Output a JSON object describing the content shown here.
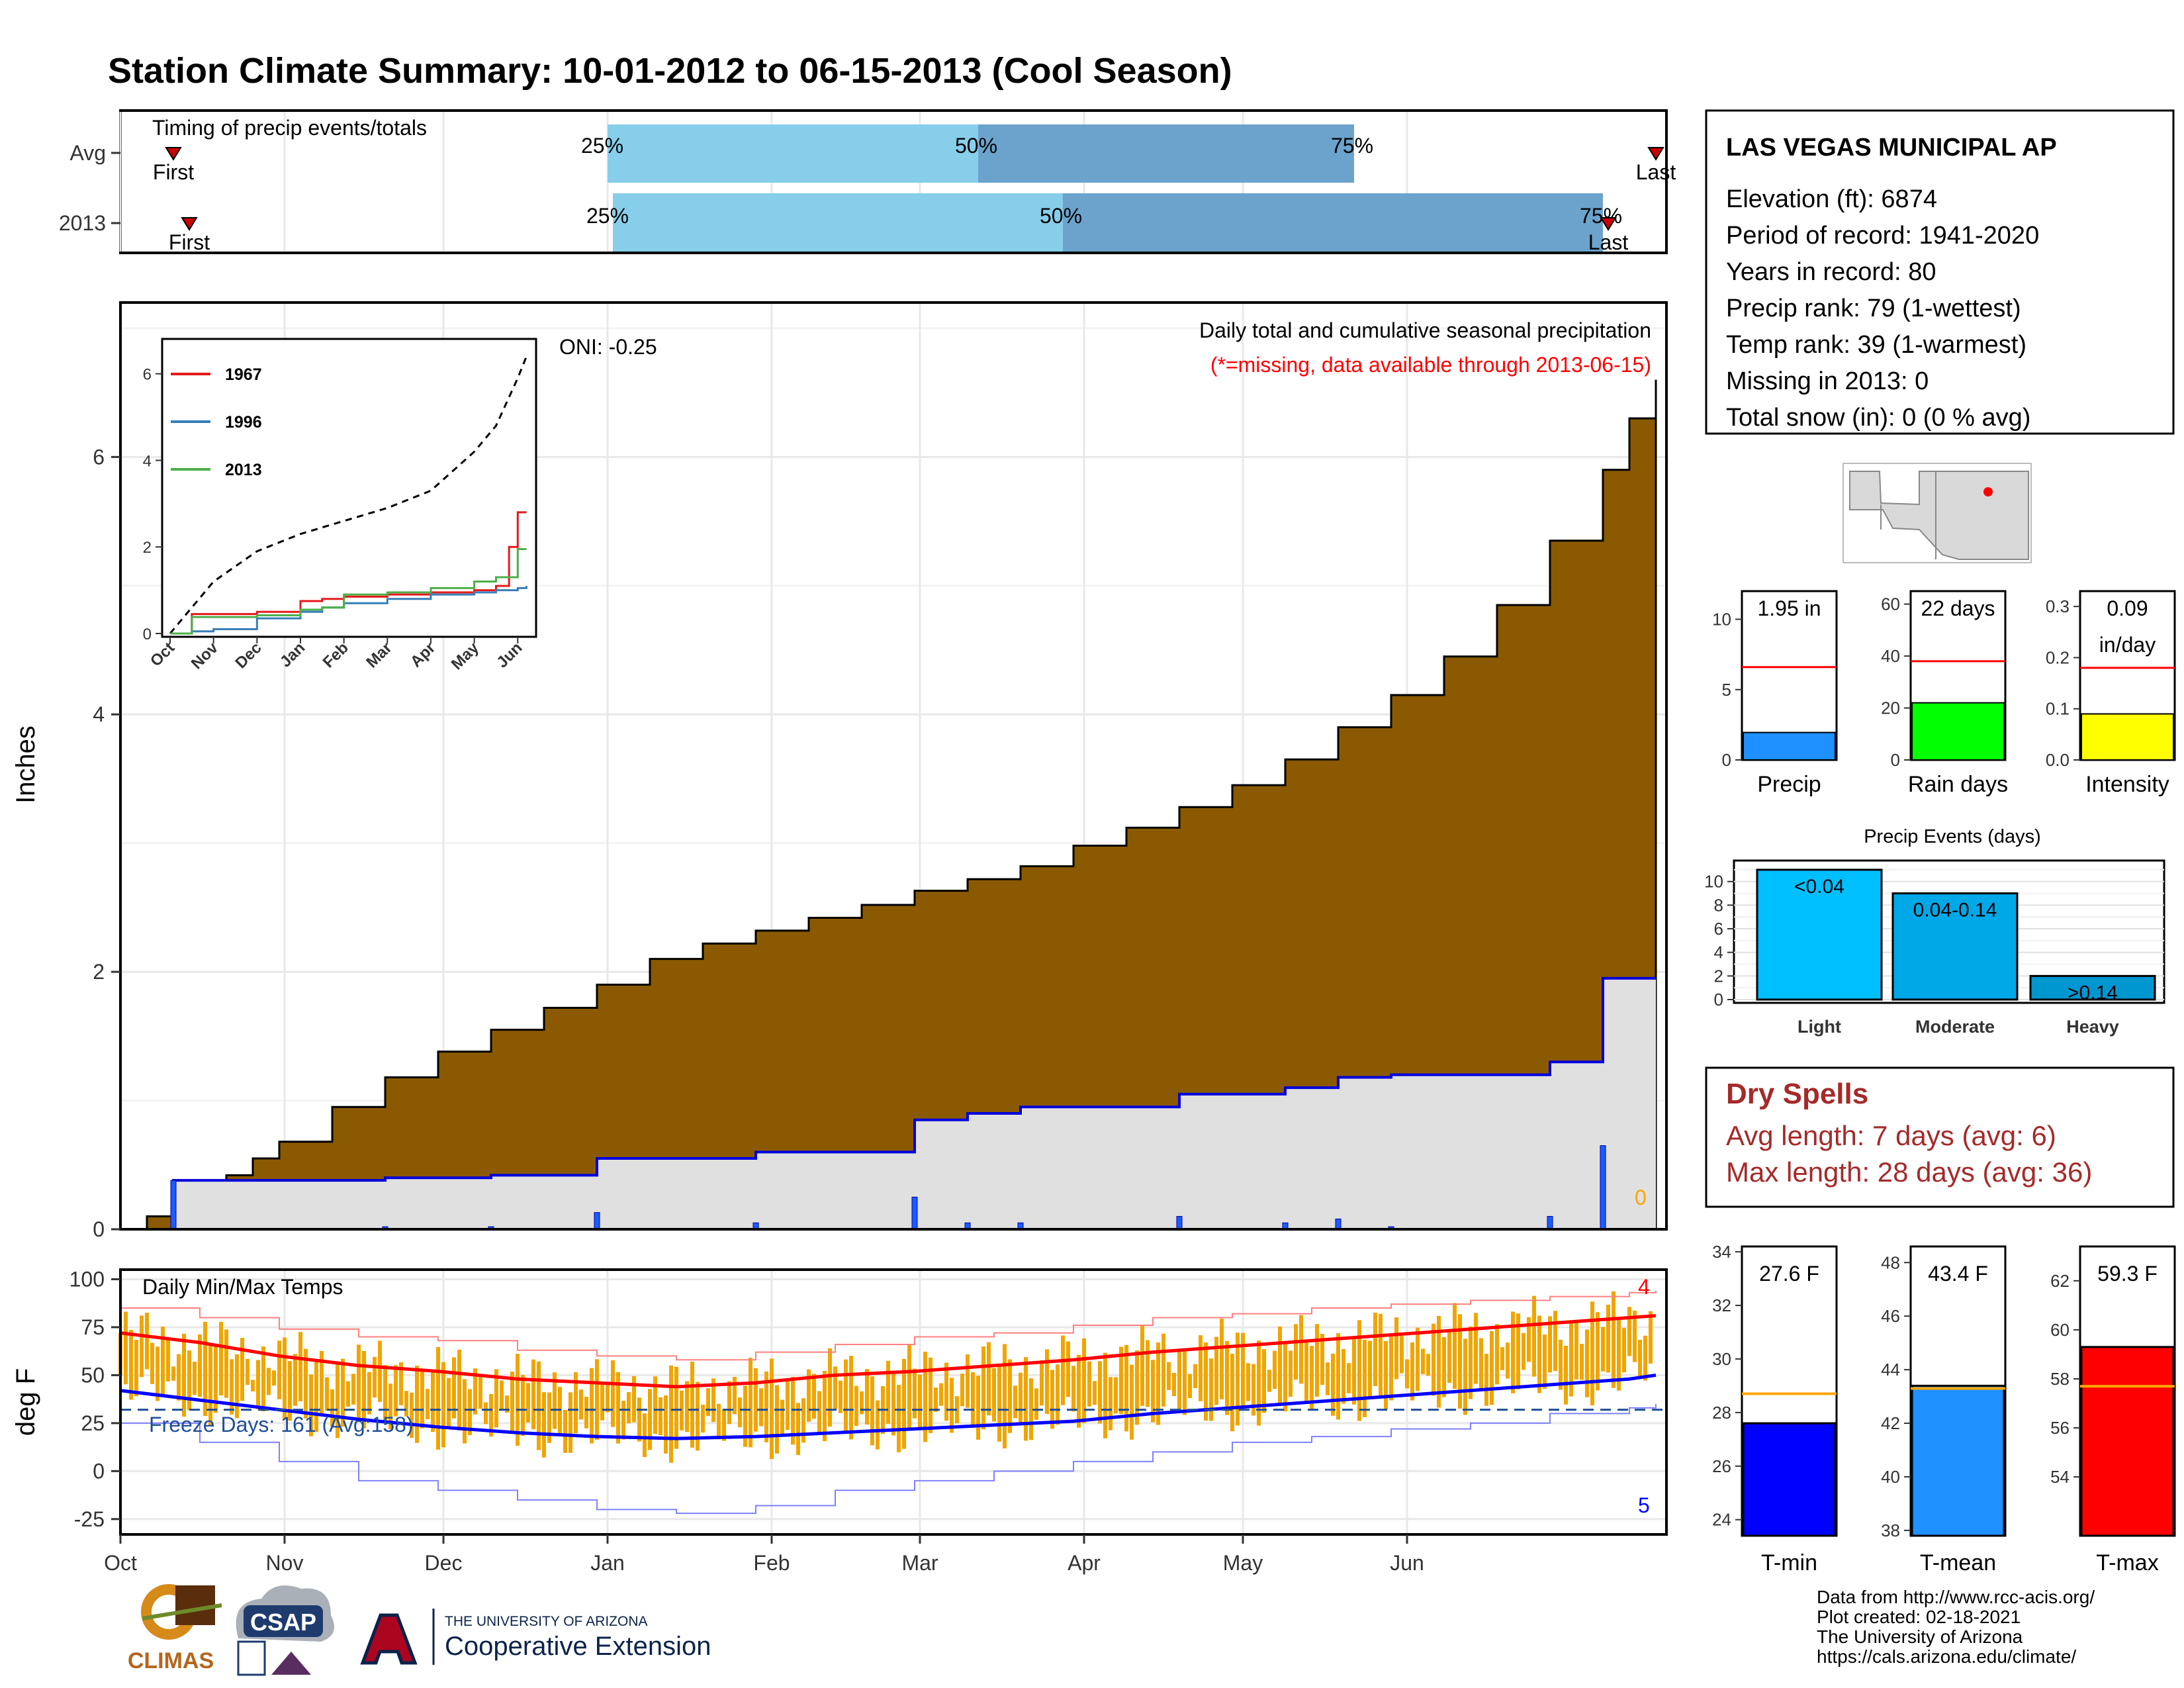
{
  "title": "Station Climate Summary: 10-01-2012 to 06-15-2013 (Cool Season)",
  "months": [
    "Oct",
    "Nov",
    "Dec",
    "Jan",
    "Feb",
    "Mar",
    "Apr",
    "May",
    "Jun"
  ],
  "colors": {
    "title": "#253c87",
    "cum_fill": "#8b5a00",
    "avg_fill": "#e0e0e0",
    "daily_bar": "#1a5cff",
    "line_blue": "#0000dd",
    "light_blue": "#87ceeb",
    "mid_blue": "#6ba3cc",
    "temp_bar": "#f0a500",
    "tmax_line": "#ff0000",
    "tmin_line": "#0000ff",
    "dry_spell": "#a52a2a"
  },
  "timing": {
    "label": "Timing of precip events/totals",
    "rows": [
      {
        "name": "Avg",
        "first": "First",
        "last": "Last",
        "p25": "25%",
        "p50": "50%",
        "p75": "75%"
      },
      {
        "name": "2013",
        "first": "First",
        "last": "Last",
        "p25": "25%",
        "p50": "50%",
        "p75": "75%"
      }
    ]
  },
  "precip_panel": {
    "ylabel": "Inches",
    "yticks": [
      "0",
      "2",
      "4",
      "6"
    ],
    "note1": "Daily total and cumulative seasonal precipitation",
    "note2": "(*=missing, data available through 2013-06-15)",
    "oni": "ONI: -0.25",
    "count_label": "0"
  },
  "inset": {
    "yticks": [
      "0",
      "2",
      "4",
      "6"
    ],
    "months": [
      "Oct",
      "Nov",
      "Dec",
      "Jan",
      "Feb",
      "Mar",
      "Apr",
      "May",
      "Jun"
    ],
    "legend": [
      {
        "name": "1967",
        "color": "#e41a1c"
      },
      {
        "name": "1996",
        "color": "#377eb8"
      },
      {
        "name": "2013",
        "color": "#4daf4a"
      }
    ]
  },
  "temp_panel": {
    "ylabel": "deg F",
    "yticks": [
      "100",
      "75",
      "50",
      "25",
      "0",
      "-25"
    ],
    "label": "Daily Min/Max Temps",
    "freeze": "Freeze Days: 161 (Avg:158)",
    "count_top": "4",
    "count_bottom": "5"
  },
  "station": {
    "name": "LAS VEGAS MUNICIPAL AP",
    "lines": [
      "Elevation (ft): 6874",
      "Period of record: 1941-2020",
      "Years in record: 80",
      "Precip rank: 79 (1-wettest)",
      "Temp rank: 39 (1-warmest)",
      "Missing in 2013: 0",
      "Total snow (in): 0 (0 % avg)"
    ]
  },
  "mini_bars": [
    {
      "label": "Precip",
      "value_text": "1.95 in",
      "value_text2": "",
      "yticks": [
        "0",
        "5",
        "10"
      ],
      "color": "#1e90ff"
    },
    {
      "label": "Rain days",
      "value_text": "22 days",
      "value_text2": "",
      "yticks": [
        "0",
        "20",
        "40",
        "60"
      ],
      "color": "#00ff00"
    },
    {
      "label": "Intensity",
      "value_text": "0.09",
      "value_text2": "in/day",
      "yticks": [
        "0.0",
        "0.1",
        "0.2",
        "0.3"
      ],
      "color": "#ffff00"
    }
  ],
  "precip_events": {
    "title": "Precip Events (days)",
    "yticks": [
      "0",
      "2",
      "4",
      "6",
      "8",
      "10"
    ],
    "bars": [
      {
        "label": "Light",
        "text": "<0.04",
        "color": "#00bfff"
      },
      {
        "label": "Moderate",
        "text": "0.04-0.14",
        "color": "#00a8e8"
      },
      {
        "label": "Heavy",
        "text": ">0.14",
        "color": "#0096d0"
      }
    ]
  },
  "dry_spells": {
    "title": "Dry Spells",
    "avg": "Avg length: 7 days (avg: 6)",
    "max": "Max length: 28 days (avg: 36)"
  },
  "temp_bars": [
    {
      "label": "T-min",
      "value_text": "27.6 F",
      "yticks": [
        "24",
        "26",
        "28",
        "30",
        "32",
        "34"
      ],
      "color": "#0000ff"
    },
    {
      "label": "T-mean",
      "value_text": "43.4 F",
      "yticks": [
        "38",
        "40",
        "42",
        "44",
        "46",
        "48"
      ],
      "color": "#1e90ff"
    },
    {
      "label": "T-max",
      "value_text": "59.3 F",
      "yticks": [
        "54",
        "56",
        "58",
        "60",
        "62"
      ],
      "color": "#ff0000"
    }
  ],
  "footer": {
    "lines": [
      "Data from http://www.rcc-acis.org/",
      "Plot created: 02-18-2021",
      "The University of Arizona",
      "https://cals.arizona.edu/climate/"
    ],
    "logo_climas": "CLIMAS",
    "logo_csap": "CSAP",
    "ua_top": "THE UNIVERSITY OF ARIZONA",
    "ua_bottom": "Cooperative Extension"
  },
  "chart_data": [
    {
      "type": "bar",
      "name": "timing",
      "categories": [
        "Avg",
        "2013"
      ],
      "series": [
        {
          "name": "25%",
          "values": [
            0.0,
            0.0
          ]
        },
        {
          "name": "50%",
          "values": [
            0.0,
            0.0
          ]
        },
        {
          "name": "75%",
          "values": [
            0.0,
            0.0
          ]
        }
      ],
      "day_of_season": {
        "Avg": {
          "first": 10,
          "p25": 92,
          "p50": 162,
          "p75": 233,
          "last": 290
        },
        "2013": {
          "first": 13,
          "p25": 93,
          "p50": 178,
          "p75": 280,
          "last": 281
        }
      }
    },
    {
      "type": "area",
      "name": "cumulative_precip",
      "xlabel": "",
      "ylabel": "Inches",
      "ylim": [
        0,
        7.2
      ],
      "x_days": [
        0,
        5,
        10,
        15,
        20,
        25,
        30,
        40,
        50,
        60,
        70,
        80,
        90,
        100,
        110,
        120,
        130,
        140,
        150,
        160,
        170,
        180,
        190,
        200,
        210,
        220,
        230,
        240,
        250,
        260,
        270,
        280,
        285,
        290
      ],
      "average_cumulative": [
        0.0,
        0.1,
        0.22,
        0.33,
        0.42,
        0.55,
        0.68,
        0.95,
        1.18,
        1.38,
        1.55,
        1.72,
        1.9,
        2.1,
        2.22,
        2.32,
        2.42,
        2.52,
        2.63,
        2.72,
        2.82,
        2.98,
        3.12,
        3.28,
        3.45,
        3.65,
        3.9,
        4.15,
        4.45,
        4.85,
        5.35,
        5.9,
        6.3,
        6.6
      ],
      "season_2013_cumulative": [
        0.0,
        0.0,
        0.38,
        0.38,
        0.38,
        0.38,
        0.38,
        0.38,
        0.4,
        0.4,
        0.42,
        0.42,
        0.55,
        0.55,
        0.55,
        0.6,
        0.6,
        0.6,
        0.85,
        0.9,
        0.95,
        0.95,
        0.95,
        1.05,
        1.05,
        1.1,
        1.18,
        1.2,
        1.2,
        1.2,
        1.3,
        1.95,
        1.95,
        1.95
      ]
    },
    {
      "type": "line",
      "name": "inset_cumulative",
      "ylim": [
        0,
        6.5
      ],
      "series": [
        {
          "name": "1967",
          "x_months": [
            0,
            0.5,
            1,
            2,
            3,
            3.5,
            4,
            5,
            6,
            7,
            7.5,
            7.8,
            8,
            8.2
          ],
          "values": [
            0,
            0.45,
            0.45,
            0.5,
            0.75,
            0.8,
            0.85,
            0.9,
            0.95,
            1.0,
            1.1,
            2.0,
            2.8,
            2.8
          ]
        },
        {
          "name": "1996",
          "x_months": [
            0,
            0.5,
            1,
            2,
            3,
            3.5,
            4,
            5,
            6,
            7,
            7.5,
            8,
            8.2
          ],
          "values": [
            0,
            0.05,
            0.1,
            0.35,
            0.5,
            0.6,
            0.7,
            0.8,
            0.9,
            0.95,
            1.0,
            1.05,
            1.1
          ]
        },
        {
          "name": "2013",
          "x_months": [
            0,
            0.5,
            1,
            2,
            3,
            3.5,
            4,
            5,
            6,
            7,
            7.5,
            8,
            8.2
          ],
          "values": [
            0,
            0.38,
            0.38,
            0.42,
            0.55,
            0.6,
            0.9,
            0.95,
            1.05,
            1.2,
            1.3,
            1.95,
            1.95
          ]
        }
      ],
      "average_x_months": [
        0,
        0.5,
        1,
        2,
        3,
        4,
        5,
        6,
        7,
        7.5,
        8,
        8.2
      ],
      "average_values": [
        0,
        0.6,
        1.2,
        1.9,
        2.3,
        2.6,
        2.9,
        3.3,
        4.2,
        4.8,
        5.9,
        6.4
      ]
    },
    {
      "type": "line",
      "name": "daily_temps",
      "ylim": [
        -30,
        100
      ],
      "x_days": [
        0,
        15,
        30,
        45,
        60,
        75,
        90,
        105,
        120,
        135,
        150,
        165,
        180,
        195,
        210,
        225,
        240,
        255,
        270,
        285,
        290
      ],
      "avg_tmax": [
        72,
        67,
        60,
        55,
        52,
        48,
        46,
        44,
        46,
        50,
        52,
        55,
        58,
        62,
        65,
        68,
        71,
        74,
        77,
        80,
        81
      ],
      "avg_tmin": [
        42,
        37,
        32,
        27,
        23,
        20,
        18,
        17,
        18,
        20,
        22,
        24,
        26,
        30,
        33,
        36,
        39,
        42,
        45,
        48,
        50
      ],
      "record_high": [
        85,
        80,
        74,
        70,
        68,
        63,
        60,
        58,
        62,
        66,
        70,
        72,
        76,
        80,
        82,
        85,
        87,
        89,
        91,
        93,
        94
      ],
      "record_low": [
        25,
        15,
        5,
        -5,
        -10,
        -15,
        -20,
        -22,
        -18,
        -10,
        -5,
        0,
        5,
        10,
        15,
        18,
        22,
        25,
        30,
        33,
        35
      ]
    },
    {
      "type": "bar",
      "name": "season_summary_bars",
      "categories": [
        "Precip",
        "Rain days",
        "Intensity"
      ],
      "values": [
        1.95,
        22,
        0.09
      ],
      "averages": [
        6.6,
        38,
        0.18
      ]
    },
    {
      "type": "bar",
      "name": "precip_events_days",
      "title": "Precip Events (days)",
      "categories": [
        "Light",
        "Moderate",
        "Heavy"
      ],
      "values": [
        11,
        9,
        2
      ],
      "ylim": [
        0,
        11.5
      ]
    },
    {
      "type": "bar",
      "name": "season_temperatures",
      "categories": [
        "T-min",
        "T-mean",
        "T-max"
      ],
      "values": [
        27.6,
        43.4,
        59.3
      ],
      "averages": [
        28.7,
        43.3,
        57.7
      ]
    }
  ]
}
